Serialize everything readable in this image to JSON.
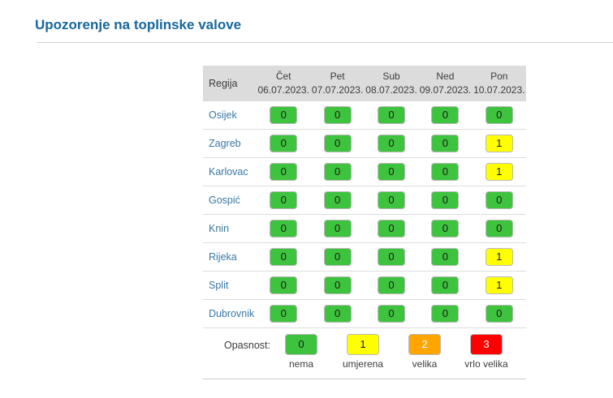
{
  "page": {
    "title": "Upozorenje na toplinske valove"
  },
  "table": {
    "region_header": "Regija",
    "day_columns": [
      {
        "day": "Čet",
        "date": "06.07.2023."
      },
      {
        "day": "Pet",
        "date": "07.07.2023."
      },
      {
        "day": "Sub",
        "date": "08.07.2023."
      },
      {
        "day": "Ned",
        "date": "09.07.2023."
      },
      {
        "day": "Pon",
        "date": "10.07.2023."
      }
    ],
    "rows": [
      {
        "region": "Osijek",
        "values": [
          0,
          0,
          0,
          0,
          0
        ]
      },
      {
        "region": "Zagreb",
        "values": [
          0,
          0,
          0,
          0,
          1
        ]
      },
      {
        "region": "Karlovac",
        "values": [
          0,
          0,
          0,
          0,
          1
        ]
      },
      {
        "region": "Gospić",
        "values": [
          0,
          0,
          0,
          0,
          0
        ]
      },
      {
        "region": "Knin",
        "values": [
          0,
          0,
          0,
          0,
          0
        ]
      },
      {
        "region": "Rijeka",
        "values": [
          0,
          0,
          0,
          0,
          1
        ]
      },
      {
        "region": "Split",
        "values": [
          0,
          0,
          0,
          0,
          1
        ]
      },
      {
        "region": "Dubrovnik",
        "values": [
          0,
          0,
          0,
          0,
          0
        ]
      }
    ]
  },
  "legend": {
    "label": "Opasnost:",
    "levels": [
      {
        "value": "0",
        "name": "nema",
        "bg": "#3ec33e",
        "fg": "#1a1a1a",
        "border": "#b9b9b9"
      },
      {
        "value": "1",
        "name": "umjerena",
        "bg": "#ffff00",
        "fg": "#1a1a1a",
        "border": "#b9b9b9"
      },
      {
        "value": "2",
        "name": "velika",
        "bg": "#ffa500",
        "fg": "#ffffff",
        "border": "#b9b9b9"
      },
      {
        "value": "3",
        "name": "vrlo velika",
        "bg": "#ff0000",
        "fg": "#ffffff",
        "border": "#b9b9b9"
      }
    ]
  },
  "colors": {
    "title": "#17679d",
    "region_link": "#3878a4",
    "header_bg": "#dcdcdc",
    "divider": "#cdd4d8",
    "row_border": "#dddddd",
    "header_text": "#3c3c3c"
  }
}
